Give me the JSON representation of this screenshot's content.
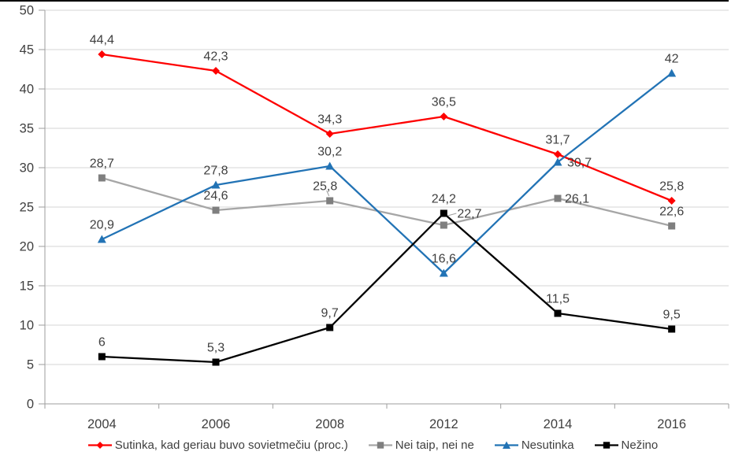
{
  "chart": {
    "background_color": "#FFFFFF",
    "top_border_color": "#000000",
    "grid_color": "#D6D6D6",
    "axis_line_color": "#9E9E9E",
    "text_color": "#3F3F3F",
    "y_axis_tick_labels": [
      "0",
      "5",
      "10",
      "15",
      "20",
      "25",
      "30",
      "35",
      "40",
      "45",
      "50"
    ],
    "x_axis_tick_labels": [
      "2004",
      "2006",
      "2008",
      "2012",
      "2014",
      "2016"
    ]
  },
  "chart_data": {
    "type": "line",
    "title": "",
    "xlabel": "",
    "ylabel": "",
    "categories": [
      "2004",
      "2006",
      "2008",
      "2012",
      "2014",
      "2016"
    ],
    "series": [
      {
        "name": "Sutinka, kad geriau buvo sovietmečiu (proc.)",
        "color": "#FE0000",
        "marker_color": "#FE0000",
        "marker": "diamond",
        "values": [
          44.4,
          42.3,
          34.3,
          36.5,
          31.7,
          25.8
        ],
        "point_labels": [
          "44,4",
          "42,3",
          "34,3",
          "36,5",
          "31,7",
          "25,8"
        ]
      },
      {
        "name": "Nei taip, nei ne",
        "color": "#A6A6A6",
        "marker_color": "#7F7F7F",
        "marker": "square",
        "values": [
          28.7,
          24.6,
          25.8,
          22.7,
          26.1,
          22.6
        ],
        "point_labels": [
          "28,7",
          "24,6",
          "25,8",
          "22,7",
          "26,1",
          "22,6"
        ]
      },
      {
        "name": "Nesutinka",
        "color": "#2273B5",
        "marker_color": "#2273B5",
        "marker": "triangle",
        "values": [
          20.9,
          27.8,
          30.2,
          16.6,
          30.7,
          42
        ],
        "point_labels": [
          "20,9",
          "27,8",
          "30,2",
          "16,6",
          "30,7",
          "42"
        ]
      },
      {
        "name": "Nežino",
        "color": "#000000",
        "marker_color": "#000000",
        "marker": "square",
        "values": [
          6,
          5.3,
          9.7,
          24.2,
          11.5,
          9.5
        ],
        "point_labels": [
          "6",
          "5,3",
          "9,7",
          "24,2",
          "11,5",
          "9,5"
        ]
      }
    ],
    "ylim": [
      0,
      50
    ],
    "y_tick_step": 5,
    "grid": "horizontal",
    "legend_position": "bottom",
    "decimal_separator": ","
  }
}
